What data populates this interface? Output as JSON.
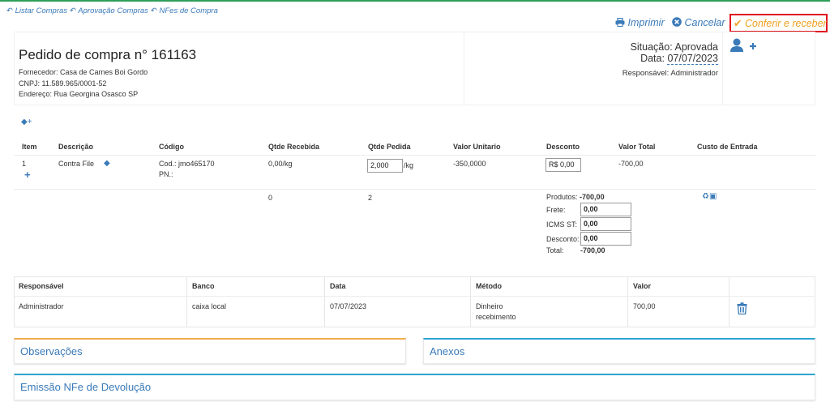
{
  "nav": {
    "list_purchases": "Listar Compras",
    "approval": "Aprovação Compras",
    "nfe": "NFes de Compra"
  },
  "actions": {
    "print": "Imprimir",
    "cancel": "Cancelar",
    "confirm": "Conferir e receber"
  },
  "order": {
    "title": "Pedido de compra n° 161163",
    "supplier": "Fornecedor: Casa de Carnes Boi Gordo",
    "cnpj": "CNPJ: 11.589.965/0001-52",
    "address": "Endereço: Rua Georgina Osasco SP",
    "status_label": "Situação:",
    "status_value": "Aprovada",
    "date_label": "Data:",
    "date_value": "07/07/2023",
    "responsible": "Responsável: Administrador"
  },
  "items": {
    "headers": [
      "Item",
      "Descrição",
      "Código",
      "Qtde Recebida",
      "Qtde Pedida",
      "Valor Unitario",
      "Desconto",
      "Valor Total",
      "Custo de Entrada"
    ],
    "row": {
      "item": "1",
      "desc": "Contra File",
      "code": "Cod.: jmo465170",
      "pn": "PN.:",
      "received": "0,00/kg",
      "ordered": "2,000",
      "ordered_unit": "/kg",
      "unit_value": "-350,0000",
      "discount": "R$ 0,00",
      "total": "-700,00"
    },
    "totals": {
      "received": "0",
      "ordered": "2",
      "products_label": "Produtos:",
      "products_value": "-700,00",
      "freight_label": "Frete:",
      "freight_value": "0,00",
      "icms_label": "ICMS ST:",
      "icms_value": "0,00",
      "discount_label": "Desconto:",
      "discount_value": "0,00",
      "total_label": "Total:",
      "total_value": "-700,00"
    }
  },
  "payments": {
    "headers": [
      "Responsável",
      "Banco",
      "Data",
      "Método",
      "Valor"
    ],
    "row": {
      "responsible": "Administrador",
      "bank": "caixa local",
      "date": "07/07/2023",
      "method_line1": "Dinheiro",
      "method_line2": "recebimento",
      "value": "700,00"
    }
  },
  "panels": {
    "observations": "Observações",
    "attachments": "Anexos",
    "return_nfe": "Emissão NFe de Devolução"
  },
  "icons": {
    "back": "reply-icon",
    "print": "print-icon",
    "cancel": "times-circle-icon",
    "confirm": "check-icon",
    "user_add": "user-plus-icon",
    "tag": "tag-icon",
    "recycle_money": "recycle-money-icon",
    "trash": "trash-icon"
  },
  "colors": {
    "accent": "#3a7ab8",
    "confirm": "#f0a020",
    "highlight_border": "#e0141e",
    "top_line": "#2e9e58",
    "obs_panel_border": "#f0ad4e",
    "attach_panel_border": "#2fa4d0"
  }
}
